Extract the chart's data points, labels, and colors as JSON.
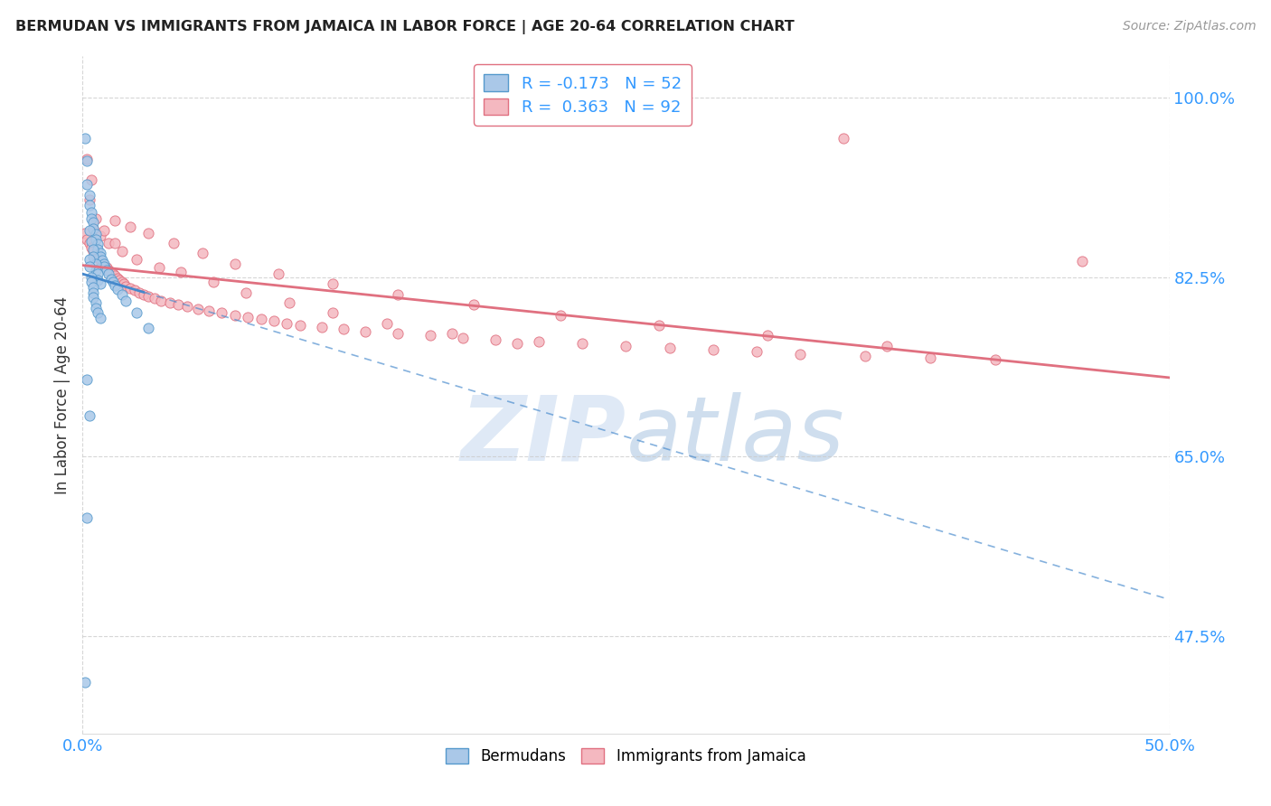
{
  "title": "BERMUDAN VS IMMIGRANTS FROM JAMAICA IN LABOR FORCE | AGE 20-64 CORRELATION CHART",
  "source": "Source: ZipAtlas.com",
  "ylabel_label": "In Labor Force | Age 20-64",
  "xlim": [
    0.0,
    0.5
  ],
  "ylim": [
    0.38,
    1.04
  ],
  "ytick_positions": [
    0.475,
    0.65,
    0.825,
    1.0
  ],
  "ytick_labels": [
    "47.5%",
    "65.0%",
    "82.5%",
    "100.0%"
  ],
  "xtick_positions": [
    0.0,
    0.5
  ],
  "xtick_labels": [
    "0.0%",
    "50.0%"
  ],
  "watermark": "ZIPatlas",
  "blue_R": -0.173,
  "blue_N": 52,
  "pink_R": 0.363,
  "pink_N": 92,
  "blue_dot_color": "#aac8e8",
  "blue_edge_color": "#5599cc",
  "pink_dot_color": "#f4b8c0",
  "pink_edge_color": "#e07080",
  "blue_label": "Bermudans",
  "pink_label": "Immigrants from Jamaica",
  "title_color": "#222222",
  "source_color": "#999999",
  "axis_color": "#3399ff",
  "grid_color": "#cccccc",
  "grid_linestyle": "--",
  "blue_line_color": "#4488cc",
  "pink_line_color": "#e07080",
  "blue_x": [
    0.001,
    0.002,
    0.002,
    0.003,
    0.003,
    0.004,
    0.004,
    0.005,
    0.005,
    0.006,
    0.006,
    0.007,
    0.007,
    0.008,
    0.008,
    0.009,
    0.01,
    0.01,
    0.011,
    0.012,
    0.013,
    0.014,
    0.015,
    0.016,
    0.018,
    0.02,
    0.025,
    0.03,
    0.003,
    0.004,
    0.005,
    0.005,
    0.006,
    0.006,
    0.007,
    0.007,
    0.008,
    0.003,
    0.003,
    0.004,
    0.004,
    0.005,
    0.005,
    0.005,
    0.006,
    0.006,
    0.007,
    0.008,
    0.002,
    0.003,
    0.002,
    0.001
  ],
  "blue_y": [
    0.96,
    0.938,
    0.915,
    0.905,
    0.895,
    0.888,
    0.882,
    0.878,
    0.872,
    0.867,
    0.862,
    0.857,
    0.852,
    0.848,
    0.845,
    0.841,
    0.838,
    0.835,
    0.832,
    0.828,
    0.823,
    0.82,
    0.817,
    0.813,
    0.808,
    0.802,
    0.79,
    0.775,
    0.87,
    0.86,
    0.852,
    0.845,
    0.838,
    0.832,
    0.828,
    0.822,
    0.818,
    0.842,
    0.835,
    0.825,
    0.82,
    0.815,
    0.81,
    0.805,
    0.8,
    0.795,
    0.79,
    0.785,
    0.725,
    0.69,
    0.59,
    0.43
  ],
  "pink_x": [
    0.001,
    0.002,
    0.003,
    0.004,
    0.005,
    0.006,
    0.007,
    0.008,
    0.009,
    0.01,
    0.011,
    0.012,
    0.013,
    0.014,
    0.015,
    0.016,
    0.017,
    0.018,
    0.019,
    0.02,
    0.022,
    0.024,
    0.026,
    0.028,
    0.03,
    0.033,
    0.036,
    0.04,
    0.044,
    0.048,
    0.053,
    0.058,
    0.064,
    0.07,
    0.076,
    0.082,
    0.088,
    0.094,
    0.1,
    0.11,
    0.12,
    0.13,
    0.145,
    0.16,
    0.175,
    0.19,
    0.21,
    0.23,
    0.25,
    0.27,
    0.29,
    0.31,
    0.33,
    0.36,
    0.39,
    0.42,
    0.045,
    0.06,
    0.075,
    0.095,
    0.115,
    0.14,
    0.17,
    0.2,
    0.005,
    0.008,
    0.012,
    0.018,
    0.025,
    0.035,
    0.015,
    0.022,
    0.03,
    0.042,
    0.055,
    0.07,
    0.09,
    0.115,
    0.145,
    0.18,
    0.22,
    0.265,
    0.315,
    0.37,
    0.003,
    0.006,
    0.01,
    0.015,
    0.002,
    0.004,
    0.35,
    0.46
  ],
  "pink_y": [
    0.868,
    0.862,
    0.858,
    0.854,
    0.85,
    0.847,
    0.844,
    0.841,
    0.838,
    0.836,
    0.834,
    0.832,
    0.83,
    0.828,
    0.826,
    0.824,
    0.822,
    0.82,
    0.818,
    0.816,
    0.814,
    0.812,
    0.81,
    0.808,
    0.806,
    0.804,
    0.802,
    0.8,
    0.798,
    0.796,
    0.794,
    0.792,
    0.79,
    0.788,
    0.786,
    0.784,
    0.782,
    0.78,
    0.778,
    0.776,
    0.774,
    0.772,
    0.77,
    0.768,
    0.766,
    0.764,
    0.762,
    0.76,
    0.758,
    0.756,
    0.754,
    0.752,
    0.75,
    0.748,
    0.746,
    0.744,
    0.83,
    0.82,
    0.81,
    0.8,
    0.79,
    0.78,
    0.77,
    0.76,
    0.872,
    0.865,
    0.858,
    0.85,
    0.842,
    0.834,
    0.88,
    0.874,
    0.868,
    0.858,
    0.848,
    0.838,
    0.828,
    0.818,
    0.808,
    0.798,
    0.788,
    0.778,
    0.768,
    0.758,
    0.9,
    0.882,
    0.87,
    0.858,
    0.94,
    0.92,
    0.96,
    0.84
  ]
}
